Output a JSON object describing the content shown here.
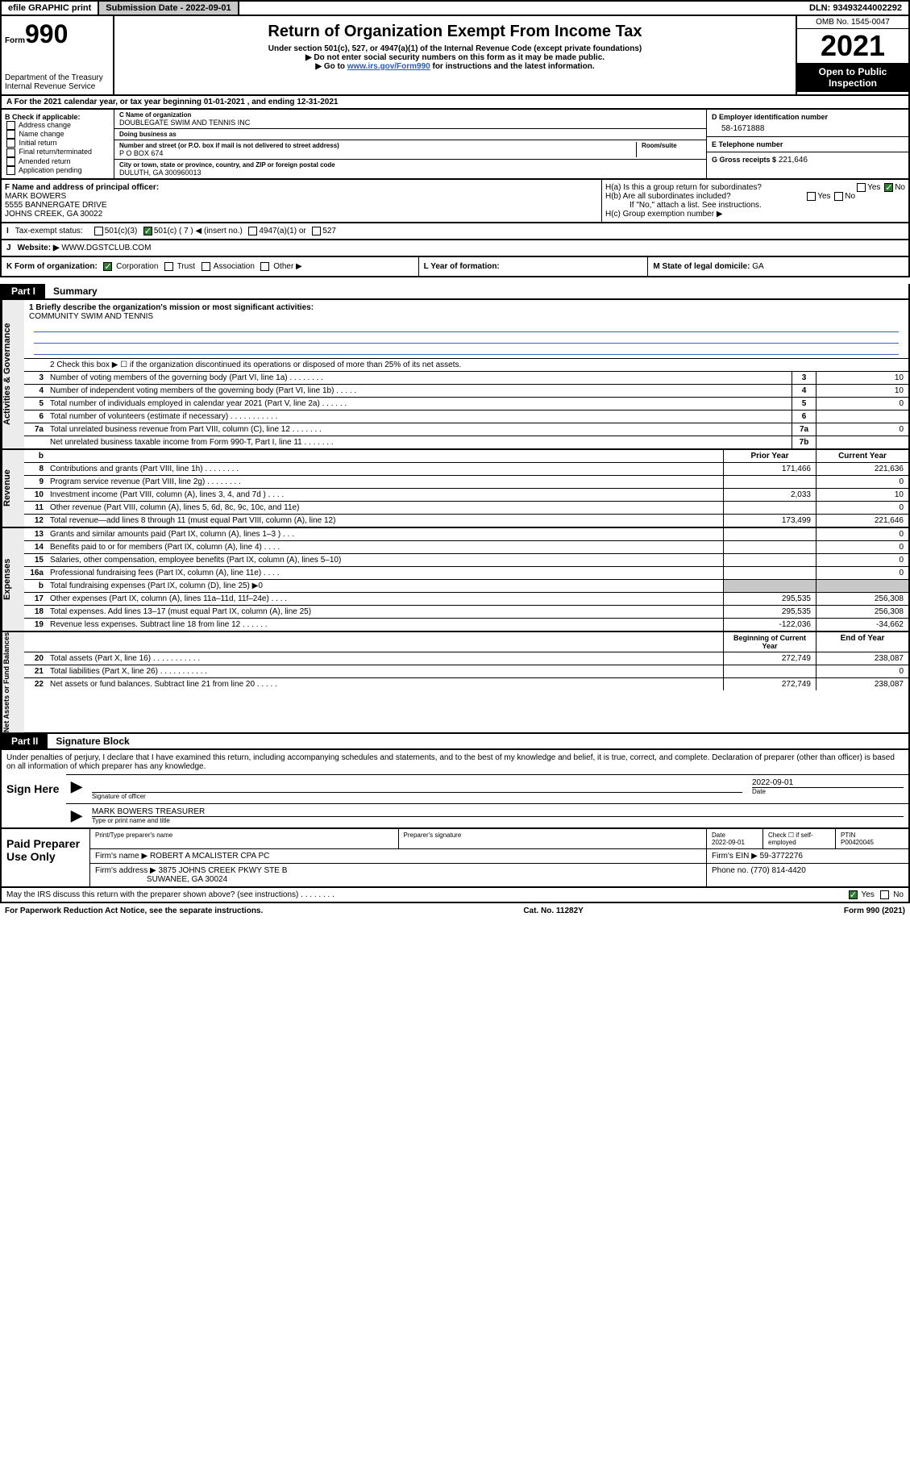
{
  "topbar": {
    "efile": "efile GRAPHIC print",
    "submission_label": "Submission Date - 2022-09-01",
    "dln": "DLN: 93493244002292"
  },
  "header": {
    "form_label": "Form",
    "form_number": "990",
    "dept": "Department of the Treasury\nInternal Revenue Service",
    "title": "Return of Organization Exempt From Income Tax",
    "subtitle1": "Under section 501(c), 527, or 4947(a)(1) of the Internal Revenue Code (except private foundations)",
    "subtitle2": "▶ Do not enter social security numbers on this form as it may be made public.",
    "subtitle3_pre": "▶ Go to ",
    "subtitle3_link": "www.irs.gov/Form990",
    "subtitle3_post": " for instructions and the latest information.",
    "omb": "OMB No. 1545-0047",
    "year": "2021",
    "open": "Open to Public Inspection"
  },
  "rowA": "A For the 2021 calendar year, or tax year beginning 01-01-2021   , and ending 12-31-2021",
  "B": {
    "label": "B Check if applicable:",
    "items": [
      "Address change",
      "Name change",
      "Initial return",
      "Final return/terminated",
      "Amended return",
      "Application pending"
    ]
  },
  "C": {
    "name_lbl": "C Name of organization",
    "name": "DOUBLEGATE SWIM AND TENNIS INC",
    "dba_lbl": "Doing business as",
    "dba": "",
    "addr_lbl": "Number and street (or P.O. box if mail is not delivered to street address)",
    "room_lbl": "Room/suite",
    "addr": "P O BOX 674",
    "city_lbl": "City or town, state or province, country, and ZIP or foreign postal code",
    "city": "DULUTH, GA  300960013"
  },
  "D": {
    "lbl": "D Employer identification number",
    "val": "58-1671888"
  },
  "E": {
    "lbl": "E Telephone number",
    "val": ""
  },
  "G": {
    "lbl": "G Gross receipts $",
    "val": "221,646"
  },
  "F": {
    "lbl": "F  Name and address of principal officer:",
    "name": "MARK BOWERS",
    "addr1": "5555 BANNERGATE DRIVE",
    "addr2": "JOHNS CREEK, GA  30022"
  },
  "H": {
    "a": "H(a)  Is this a group return for subordinates?",
    "a_yes": "Yes",
    "a_no": "No",
    "b": "H(b)  Are all subordinates included?",
    "b_yes": "Yes",
    "b_no": "No",
    "b_note": "If \"No,\" attach a list. See instructions.",
    "c": "H(c)  Group exemption number ▶"
  },
  "I": {
    "lbl": "Tax-exempt status:",
    "opts": [
      "501(c)(3)",
      "501(c) ( 7 ) ◀ (insert no.)",
      "4947(a)(1) or",
      "527"
    ]
  },
  "J": {
    "lbl": "Website: ▶",
    "val": "WWW.DGSTCLUB.COM"
  },
  "K": {
    "lbl": "K Form of organization:",
    "opts": [
      "Corporation",
      "Trust",
      "Association",
      "Other ▶"
    ]
  },
  "L": {
    "lbl": "L Year of formation:",
    "val": ""
  },
  "M": {
    "lbl": "M State of legal domicile:",
    "val": "GA"
  },
  "part1": {
    "tag": "Part I",
    "title": "Summary"
  },
  "mission": {
    "q": "1  Briefly describe the organization's mission or most significant activities:",
    "a": "COMMUNITY SWIM AND TENNIS"
  },
  "line2": "2    Check this box ▶ ☐  if the organization discontinued its operations or disposed of more than 25% of its net assets.",
  "gov_rows": [
    {
      "n": "3",
      "t": "Number of voting members of the governing body (Part VI, line 1a)   .    .    .    .    .    .    .    .",
      "b": "3",
      "v": "10"
    },
    {
      "n": "4",
      "t": "Number of independent voting members of the governing body (Part VI, line 1b)    .    .    .    .    .",
      "b": "4",
      "v": "10"
    },
    {
      "n": "5",
      "t": "Total number of individuals employed in calendar year 2021 (Part V, line 2a)    .    .    .    .    .    .",
      "b": "5",
      "v": "0"
    },
    {
      "n": "6",
      "t": "Total number of volunteers (estimate if necessary)    .    .    .    .    .    .    .    .    .    .    .",
      "b": "6",
      "v": ""
    },
    {
      "n": "7a",
      "t": "Total unrelated business revenue from Part VIII, column (C), line 12    .    .    .    .    .    .    .",
      "b": "7a",
      "v": "0"
    },
    {
      "n": "",
      "t": "Net unrelated business taxable income from Form 990-T, Part I, line 11    .    .    .    .    .    .    .",
      "b": "7b",
      "v": ""
    }
  ],
  "two_col_hdr": {
    "b": "b",
    "py": "Prior Year",
    "cy": "Current Year"
  },
  "rev_rows": [
    {
      "n": "8",
      "t": "Contributions and grants (Part VIII, line 1h)    .    .    .    .    .    .    .    .",
      "py": "171,466",
      "cy": "221,636"
    },
    {
      "n": "9",
      "t": "Program service revenue (Part VIII, line 2g)    .    .    .    .    .    .    .    .",
      "py": "",
      "cy": "0"
    },
    {
      "n": "10",
      "t": "Investment income (Part VIII, column (A), lines 3, 4, and 7d )    .    .    .    .",
      "py": "2,033",
      "cy": "10"
    },
    {
      "n": "11",
      "t": "Other revenue (Part VIII, column (A), lines 5, 6d, 8c, 9c, 10c, and 11e)",
      "py": "",
      "cy": "0"
    },
    {
      "n": "12",
      "t": "Total revenue—add lines 8 through 11 (must equal Part VIII, column (A), line 12)",
      "py": "173,499",
      "cy": "221,646"
    }
  ],
  "exp_rows": [
    {
      "n": "13",
      "t": "Grants and similar amounts paid (Part IX, column (A), lines 1–3 )    .    .    .",
      "py": "",
      "cy": "0"
    },
    {
      "n": "14",
      "t": "Benefits paid to or for members (Part IX, column (A), line 4)    .    .    .    .",
      "py": "",
      "cy": "0"
    },
    {
      "n": "15",
      "t": "Salaries, other compensation, employee benefits (Part IX, column (A), lines 5–10)",
      "py": "",
      "cy": "0"
    },
    {
      "n": "16a",
      "t": "Professional fundraising fees (Part IX, column (A), line 11e)    .    .    .    .",
      "py": "",
      "cy": "0"
    },
    {
      "n": "b",
      "t": "Total fundraising expenses (Part IX, column (D), line 25) ▶0",
      "py": "grey",
      "cy": "grey"
    },
    {
      "n": "17",
      "t": "Other expenses (Part IX, column (A), lines 11a–11d, 11f–24e)    .    .    .    .",
      "py": "295,535",
      "cy": "256,308"
    },
    {
      "n": "18",
      "t": "Total expenses. Add lines 13–17 (must equal Part IX, column (A), line 25)",
      "py": "295,535",
      "cy": "256,308"
    },
    {
      "n": "19",
      "t": "Revenue less expenses. Subtract line 18 from line 12    .    .    .    .    .    .",
      "py": "-122,036",
      "cy": "-34,662"
    }
  ],
  "na_hdr": {
    "py": "Beginning of Current Year",
    "cy": "End of Year"
  },
  "na_rows": [
    {
      "n": "20",
      "t": "Total assets (Part X, line 16)    .    .    .    .    .    .    .    .    .    .    .",
      "py": "272,749",
      "cy": "238,087"
    },
    {
      "n": "21",
      "t": "Total liabilities (Part X, line 26)    .    .    .    .    .    .    .    .    .    .    .",
      "py": "",
      "cy": "0"
    },
    {
      "n": "22",
      "t": "Net assets or fund balances. Subtract line 21 from line 20    .    .    .    .    .",
      "py": "272,749",
      "cy": "238,087"
    }
  ],
  "vlabels": {
    "gov": "Activities & Governance",
    "rev": "Revenue",
    "exp": "Expenses",
    "na": "Net Assets or Fund Balances"
  },
  "part2": {
    "tag": "Part II",
    "title": "Signature Block"
  },
  "sig": {
    "decl": "Under penalties of perjury, I declare that I have examined this return, including accompanying schedules and statements, and to the best of my knowledge and belief, it is true, correct, and complete. Declaration of preparer (other than officer) is based on all information of which preparer has any knowledge.",
    "sign_here": "Sign Here",
    "sig_officer": "Signature of officer",
    "date": "2022-09-01",
    "date_lbl": "Date",
    "name": "MARK BOWERS TREASURER",
    "name_lbl": "Type or print name and title"
  },
  "paid": {
    "label": "Paid Preparer Use Only",
    "hdr": [
      "Print/Type preparer's name",
      "Preparer's signature",
      "Date",
      "Check ☐ if self-employed",
      "PTIN"
    ],
    "row1_date": "2022-09-01",
    "row1_ptin": "P00420045",
    "firm_name_lbl": "Firm's name    ▶",
    "firm_name": "ROBERT A MCALISTER CPA PC",
    "firm_ein_lbl": "Firm's EIN ▶",
    "firm_ein": "59-3772276",
    "firm_addr_lbl": "Firm's address ▶",
    "firm_addr1": "3875 JOHNS CREEK PKWY STE B",
    "firm_addr2": "SUWANEE, GA  30024",
    "phone_lbl": "Phone no.",
    "phone": "(770) 814-4420"
  },
  "discuss": {
    "q": "May the IRS discuss this return with the preparer shown above? (see instructions)    .    .    .    .    .    .    .    .",
    "yes": "Yes",
    "no": "No"
  },
  "pwra": {
    "l": "For Paperwork Reduction Act Notice, see the separate instructions.",
    "c": "Cat. No. 11282Y",
    "r": "Form 990 (2021)"
  }
}
